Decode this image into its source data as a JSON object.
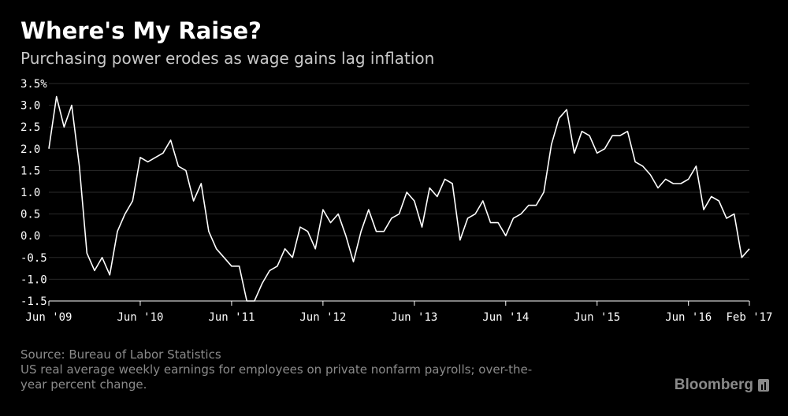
{
  "header": {
    "title": "Where's My Raise?",
    "subtitle": "Purchasing power erodes as wage gains lag inflation"
  },
  "footer": {
    "source": "Source: Bureau of Labor Statistics",
    "note_line1": "US real average weekly earnings for employees on private nonfarm payrolls; over-the-",
    "note_line2": "year percent change.",
    "brand": "Bloomberg"
  },
  "colors": {
    "background": "#000000",
    "line": "#ffffff",
    "gridline": "#2a2a2a",
    "muted_text": "#8a8a8a"
  },
  "chart_data": {
    "type": "line",
    "title": "Where's My Raise?",
    "subtitle": "Purchasing power erodes as wage gains lag inflation",
    "xlabel": "",
    "ylabel": "",
    "unit": "%",
    "ylim": [
      -1.5,
      3.5
    ],
    "yticks": [
      "3.5%",
      "3.0",
      "2.5",
      "2.0",
      "1.5",
      "1.0",
      "0.5",
      "0.0",
      "-0.5",
      "-1.0",
      "-1.5"
    ],
    "ytick_values": [
      3.5,
      3.0,
      2.5,
      2.0,
      1.5,
      1.0,
      0.5,
      0.0,
      -0.5,
      -1.0,
      -1.5
    ],
    "xticks": [
      {
        "label": "Jun '09",
        "month_index": 0
      },
      {
        "label": "Jun '10",
        "month_index": 12
      },
      {
        "label": "Jun '11",
        "month_index": 24
      },
      {
        "label": "Jun '12",
        "month_index": 36
      },
      {
        "label": "Jun '13",
        "month_index": 48
      },
      {
        "label": "Jun '14",
        "month_index": 60
      },
      {
        "label": "Jun '15",
        "month_index": 72
      },
      {
        "label": "Jun '16",
        "month_index": 84
      },
      {
        "label": "Feb '17",
        "month_index": 92
      }
    ],
    "x_start": "2009-06",
    "x_end": "2017-02",
    "grid": "horizontal",
    "legend": "none",
    "series": [
      {
        "values": [
          2.0,
          3.2,
          2.5,
          3.0,
          1.6,
          -0.4,
          -0.8,
          -0.5,
          -0.9,
          0.1,
          0.5,
          0.8,
          1.8,
          1.7,
          1.8,
          1.9,
          2.2,
          1.6,
          1.5,
          0.8,
          1.2,
          0.1,
          -0.3,
          -0.5,
          -0.7,
          -0.7,
          -1.5,
          -1.5,
          -1.1,
          -0.8,
          -0.7,
          -0.3,
          -0.5,
          0.2,
          0.1,
          -0.3,
          0.6,
          0.3,
          0.5,
          0.0,
          -0.6,
          0.1,
          0.6,
          0.1,
          0.1,
          0.4,
          0.5,
          1.0,
          0.8,
          0.2,
          1.1,
          0.9,
          1.3,
          1.2,
          -0.1,
          0.4,
          0.5,
          0.8,
          0.3,
          0.3,
          0.0,
          0.4,
          0.5,
          0.7,
          0.7,
          1.0,
          2.1,
          2.7,
          2.9,
          1.9,
          2.4,
          2.3,
          1.9,
          2.0,
          2.3,
          2.3,
          2.4,
          1.7,
          1.6,
          1.4,
          1.1,
          1.3,
          1.2,
          1.2,
          1.3,
          1.6,
          0.6,
          0.9,
          0.8,
          0.4,
          0.5,
          -0.5,
          -0.3
        ]
      }
    ]
  }
}
